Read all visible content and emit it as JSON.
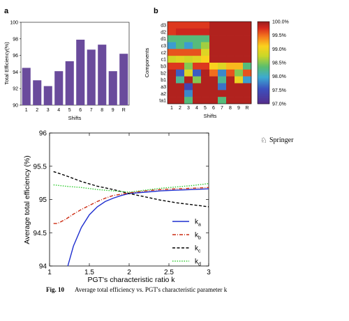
{
  "caption": {
    "label": "Fig. 10",
    "text": "Average total efficiency vs. PGT's characteristic parameter k"
  },
  "publisher": {
    "name": "Springer",
    "icon": "springer-horse-icon"
  },
  "chart_data": [
    {
      "panel": "a",
      "type": "bar",
      "categories": [
        "1",
        "2",
        "3",
        "4",
        "5",
        "6",
        "7",
        "8",
        "9",
        "R"
      ],
      "values": [
        94.5,
        93.0,
        92.3,
        94.1,
        95.3,
        97.9,
        96.7,
        97.3,
        94.1,
        96.2
      ],
      "xlabel": "Shifts",
      "ylabel": "Total Efficiency(%)",
      "ylim": [
        90,
        100
      ],
      "yticks": [
        90,
        92,
        94,
        96,
        98,
        100
      ],
      "bar_color": "#6a4b9c"
    },
    {
      "panel": "b",
      "type": "heatmap",
      "x_categories": [
        "1",
        "2",
        "3",
        "4",
        "5",
        "6",
        "7",
        "8",
        "9",
        "R"
      ],
      "y_categories": [
        "d3",
        "d2",
        "d1",
        "c3",
        "c2",
        "c1",
        "b3",
        "b2",
        "b1",
        "a3",
        "a2",
        "ta1"
      ],
      "xlabel": "Shifts",
      "ylabel": "Components",
      "colorbar_ticks": [
        "100.0%",
        "99.5%",
        "99.0%",
        "98.5%",
        "98.0%",
        "97.5%",
        "97.0%"
      ],
      "colorbar_range": [
        97.0,
        100.0
      ],
      "values": [
        [
          99.7,
          99.7,
          99.7,
          99.7,
          99.7,
          99.9,
          99.9,
          99.9,
          99.9,
          99.9
        ],
        [
          99.7,
          99.8,
          99.8,
          99.8,
          99.8,
          99.9,
          99.9,
          99.9,
          99.9,
          99.9
        ],
        [
          98.3,
          98.3,
          98.3,
          98.3,
          98.3,
          99.9,
          99.9,
          99.9,
          99.9,
          99.9
        ],
        [
          97.9,
          98.3,
          97.9,
          98.3,
          98.6,
          99.9,
          99.9,
          99.9,
          99.9,
          99.9
        ],
        [
          99.6,
          99.6,
          99.6,
          99.6,
          98.9,
          99.9,
          99.9,
          99.9,
          99.9,
          99.9
        ],
        [
          98.8,
          98.9,
          98.8,
          98.9,
          99.1,
          99.9,
          99.9,
          99.9,
          99.9,
          99.9
        ],
        [
          99.7,
          99.7,
          98.5,
          99.7,
          99.7,
          99.1,
          98.9,
          99.2,
          99.2,
          98.3
        ],
        [
          99.9,
          97.6,
          98.9,
          97.6,
          99.9,
          99.5,
          97.8,
          99.6,
          98.5,
          99.6
        ],
        [
          99.9,
          98.2,
          99.9,
          98.5,
          99.9,
          99.9,
          98.2,
          99.9,
          99.0,
          97.9
        ],
        [
          99.9,
          99.9,
          97.4,
          99.9,
          99.9,
          99.9,
          97.7,
          99.9,
          99.9,
          99.9
        ],
        [
          99.9,
          99.9,
          97.8,
          99.9,
          99.9,
          99.9,
          99.9,
          99.9,
          99.9,
          99.9
        ],
        [
          99.9,
          99.9,
          98.3,
          99.9,
          99.9,
          99.9,
          98.3,
          99.9,
          99.9,
          99.9
        ]
      ]
    },
    {
      "panel": "c",
      "type": "line",
      "xlabel": "PGT's characteristic ratio k",
      "ylabel": "Average total efficiency (%)",
      "xlim": [
        1,
        3
      ],
      "ylim": [
        94,
        96
      ],
      "xticks": [
        1,
        1.5,
        2,
        2.5,
        3
      ],
      "yticks": [
        94,
        94.5,
        95,
        95.5,
        96
      ],
      "legend_position": "right",
      "series": [
        {
          "name": "ka",
          "sub": "a",
          "color": "#1f2fcf",
          "dash": "solid",
          "x": [
            1.22,
            1.3,
            1.4,
            1.5,
            1.6,
            1.7,
            1.8,
            1.9,
            2.0,
            2.2,
            2.4,
            2.6,
            2.8,
            3.0
          ],
          "y": [
            93.96,
            94.3,
            94.58,
            94.77,
            94.89,
            94.97,
            95.02,
            95.06,
            95.09,
            95.11,
            95.13,
            95.14,
            95.15,
            95.16
          ]
        },
        {
          "name": "kb",
          "sub": "b",
          "color": "#cc2a10",
          "dash": "dashdot",
          "x": [
            1.05,
            1.1,
            1.2,
            1.3,
            1.4,
            1.5,
            1.6,
            1.7,
            1.8,
            2.0,
            2.2,
            2.4,
            2.6,
            2.8,
            3.0
          ],
          "y": [
            94.64,
            94.64,
            94.7,
            94.78,
            94.85,
            94.91,
            94.97,
            95.02,
            95.06,
            95.1,
            95.13,
            95.15,
            95.16,
            95.17,
            95.18
          ]
        },
        {
          "name": "kc",
          "sub": "c",
          "color": "#000000",
          "dash": "dashed",
          "x": [
            1.05,
            1.2,
            1.4,
            1.6,
            1.8,
            2.0,
            2.2,
            2.4,
            2.6,
            2.8,
            3.0
          ],
          "y": [
            95.42,
            95.36,
            95.27,
            95.2,
            95.15,
            95.09,
            95.04,
            94.99,
            94.95,
            94.92,
            94.89
          ]
        },
        {
          "name": "kd",
          "sub": "d",
          "color": "#33cc33",
          "dash": "dotted",
          "x": [
            1.05,
            1.2,
            1.4,
            1.6,
            1.8,
            2.0,
            2.2,
            2.4,
            2.6,
            2.8,
            3.0
          ],
          "y": [
            95.22,
            95.2,
            95.18,
            95.15,
            95.13,
            95.11,
            95.14,
            95.17,
            95.19,
            95.21,
            95.24
          ]
        }
      ]
    }
  ]
}
